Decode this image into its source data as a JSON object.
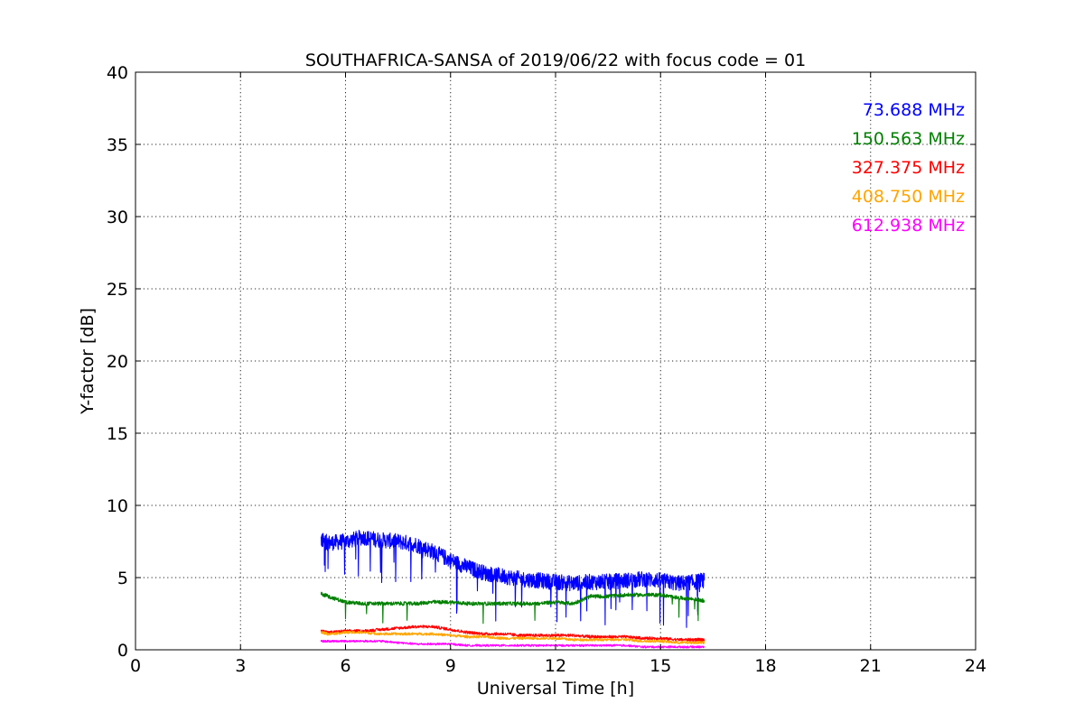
{
  "chart_data": {
    "type": "line",
    "title": "SOUTHAFRICA-SANSA of 2019/06/22 with focus code = 01",
    "xlabel": "Universal Time [h]",
    "ylabel": "Y-factor [dB]",
    "xlim": [
      0,
      24
    ],
    "ylim": [
      0,
      40
    ],
    "x_ticks": [
      "0",
      "3",
      "6",
      "9",
      "12",
      "15",
      "18",
      "21",
      "24"
    ],
    "y_ticks": [
      "0",
      "5",
      "10",
      "15",
      "20",
      "25",
      "30",
      "35",
      "40"
    ],
    "grid": true,
    "legend_placement": "top-right",
    "series": [
      {
        "name": "73.688 MHz",
        "color": "#0000ff",
        "x": [
          5.3,
          5.5,
          6.0,
          6.5,
          7.0,
          7.5,
          8.0,
          8.5,
          9.0,
          9.5,
          10.0,
          10.5,
          11.0,
          11.5,
          12.0,
          12.5,
          13.0,
          13.5,
          14.0,
          14.5,
          15.0,
          15.5,
          16.0,
          16.25
        ],
        "y": [
          7.6,
          7.4,
          7.5,
          7.8,
          7.6,
          7.5,
          7.3,
          6.8,
          6.2,
          5.7,
          5.3,
          5.1,
          4.9,
          4.8,
          4.7,
          4.6,
          4.7,
          4.7,
          4.8,
          4.9,
          4.8,
          4.6,
          4.7,
          4.8
        ]
      },
      {
        "name": "150.563 MHz",
        "color": "#008000",
        "x": [
          5.3,
          5.5,
          6.0,
          6.5,
          7.0,
          7.5,
          8.0,
          8.5,
          9.0,
          9.5,
          10.0,
          10.5,
          11.0,
          11.5,
          12.0,
          12.5,
          13.0,
          13.5,
          14.0,
          14.5,
          15.0,
          15.5,
          16.0,
          16.25
        ],
        "y": [
          3.9,
          3.7,
          3.3,
          3.2,
          3.2,
          3.2,
          3.2,
          3.3,
          3.3,
          3.2,
          3.2,
          3.2,
          3.2,
          3.2,
          3.3,
          3.2,
          3.7,
          3.7,
          3.8,
          3.8,
          3.8,
          3.6,
          3.5,
          3.4
        ]
      },
      {
        "name": "327.375 MHz",
        "color": "#ff0000",
        "x": [
          5.3,
          5.5,
          6.0,
          6.5,
          7.0,
          7.5,
          8.0,
          8.5,
          9.0,
          9.5,
          10.0,
          10.5,
          11.0,
          11.5,
          12.0,
          12.5,
          13.0,
          13.5,
          14.0,
          14.5,
          15.0,
          15.5,
          16.0,
          16.25
        ],
        "y": [
          1.3,
          1.2,
          1.3,
          1.3,
          1.4,
          1.5,
          1.6,
          1.6,
          1.4,
          1.2,
          1.1,
          1.1,
          1.0,
          1.0,
          1.0,
          1.0,
          0.9,
          0.9,
          0.9,
          0.8,
          0.8,
          0.7,
          0.7,
          0.7
        ]
      },
      {
        "name": "408.750 MHz",
        "color": "#ffa500",
        "x": [
          5.3,
          5.5,
          6.0,
          6.5,
          7.0,
          7.5,
          8.0,
          8.5,
          9.0,
          9.5,
          10.0,
          10.5,
          11.0,
          11.5,
          12.0,
          12.5,
          13.0,
          13.5,
          14.0,
          14.5,
          15.0,
          15.5,
          16.0,
          16.25
        ],
        "y": [
          1.2,
          1.1,
          1.2,
          1.2,
          1.1,
          1.1,
          1.1,
          1.1,
          1.0,
          0.9,
          0.9,
          0.8,
          0.8,
          0.8,
          0.8,
          0.7,
          0.7,
          0.7,
          0.7,
          0.6,
          0.6,
          0.5,
          0.5,
          0.5
        ]
      },
      {
        "name": "612.938 MHz",
        "color": "#ff00ff",
        "x": [
          5.3,
          5.5,
          6.0,
          6.5,
          7.0,
          7.5,
          8.0,
          8.5,
          9.0,
          9.5,
          10.0,
          10.5,
          11.0,
          11.5,
          12.0,
          12.5,
          13.0,
          13.5,
          14.0,
          14.5,
          15.0,
          15.5,
          16.0,
          16.25
        ],
        "y": [
          0.6,
          0.6,
          0.6,
          0.6,
          0.6,
          0.5,
          0.4,
          0.4,
          0.4,
          0.3,
          0.3,
          0.3,
          0.3,
          0.3,
          0.3,
          0.3,
          0.3,
          0.3,
          0.3,
          0.2,
          0.2,
          0.2,
          0.2,
          0.2
        ]
      }
    ]
  }
}
